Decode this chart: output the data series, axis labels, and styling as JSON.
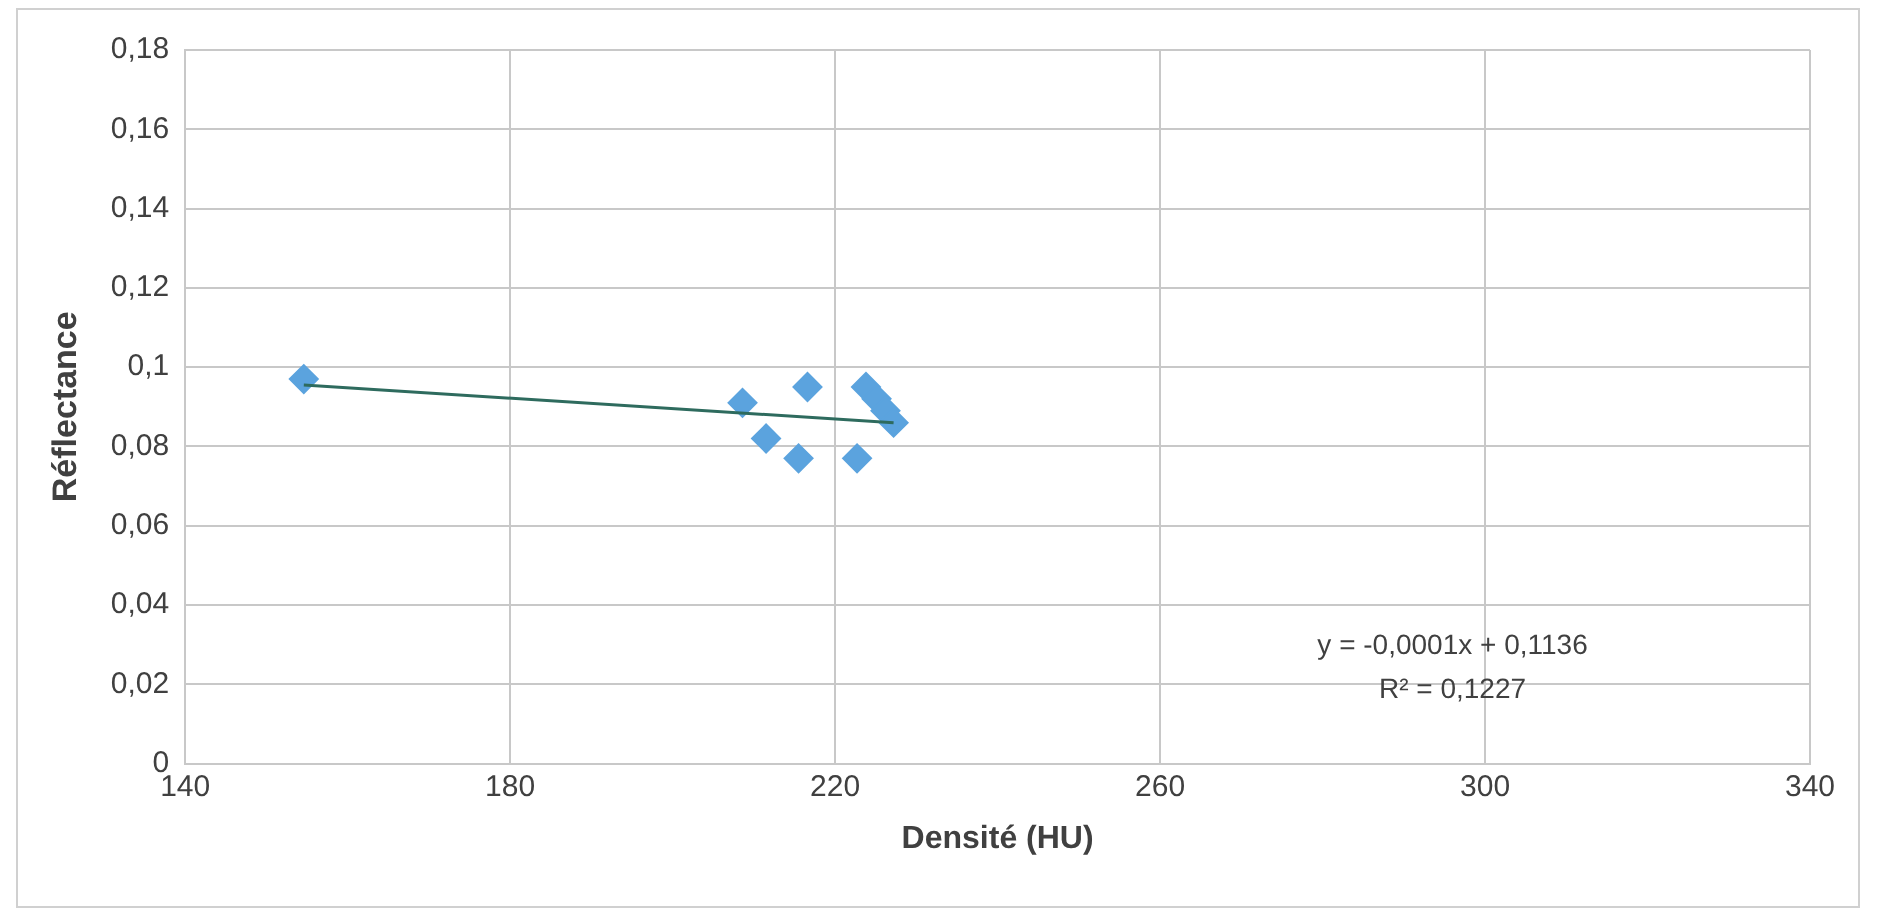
{
  "chart_data": {
    "type": "scatter",
    "xlabel": "Densité (HU)",
    "ylabel": "Réflectance",
    "series": [
      {
        "type": "scatter",
        "color": "#5ba3de",
        "marker": "diamond",
        "x": [
          154.6,
          208.6,
          211.5,
          216.6,
          215.5,
          222.7,
          223.8,
          225.1,
          226.2,
          227.2
        ],
        "values": [
          0.097,
          0.091,
          0.082,
          0.095,
          0.077,
          0.077,
          0.095,
          0.092,
          0.089,
          0.086
        ]
      },
      {
        "type": "line",
        "color": "#2e6b5e",
        "marker": "none",
        "x": [
          154.6,
          227.2
        ],
        "values": [
          0.0955,
          0.086
        ]
      }
    ],
    "xlim": [
      140,
      340
    ],
    "xticks": [
      140,
      180,
      220,
      260,
      300,
      340
    ],
    "ylim": [
      0,
      0.18
    ],
    "yticks": [
      0,
      {
        "value": 0.02,
        "label": "0,02"
      },
      {
        "value": 0.04,
        "label": "0,04"
      },
      {
        "value": 0.06,
        "label": "0,06"
      },
      {
        "value": 0.08,
        "label": "0,08"
      },
      {
        "value": 0.1,
        "label": "0,1"
      },
      {
        "value": 0.12,
        "label": "0,12"
      },
      {
        "value": 0.14,
        "label": "0,14"
      },
      {
        "value": 0.16,
        "label": "0,16"
      },
      {
        "value": 0.18,
        "label": "0,18"
      }
    ],
    "annotations": [
      "y = -0,0001x + 0,1136",
      "R² = 0,1227"
    ],
    "grid": true,
    "legend": false
  }
}
